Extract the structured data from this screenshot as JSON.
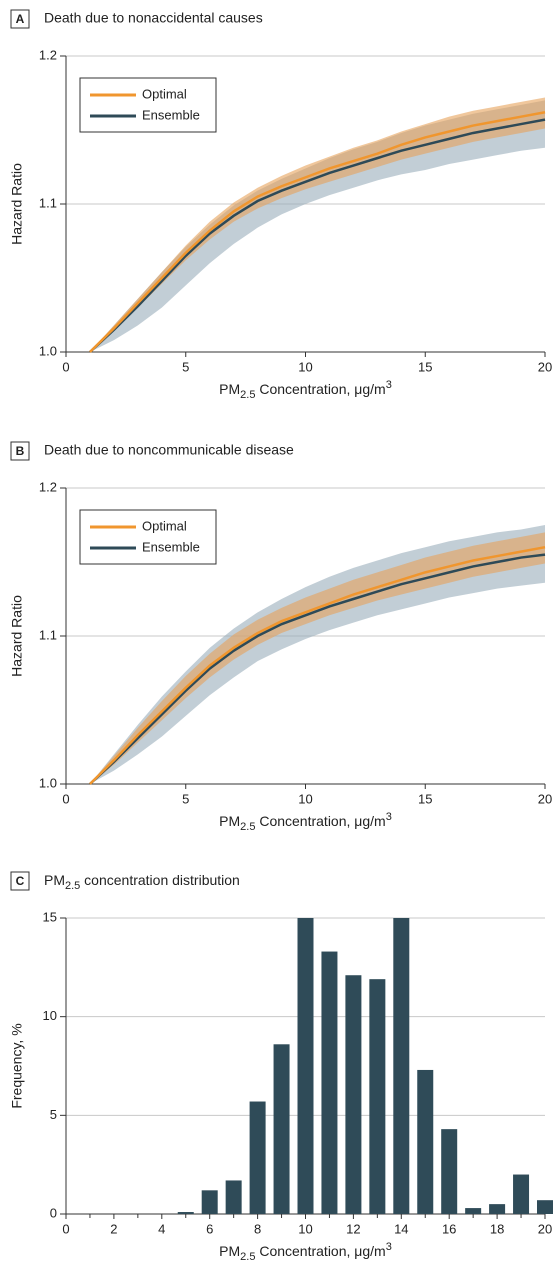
{
  "chart_data": [
    {
      "type": "line",
      "panel_label": "A",
      "title": "Death due to nonaccidental causes",
      "x_label": {
        "pre": "PM",
        "sub": "2.5",
        "post": " Concentration, μg/m",
        "sup": "3"
      },
      "y_label": "Hazard Ratio",
      "x": [
        1,
        2,
        3,
        4,
        5,
        6,
        7,
        8,
        9,
        10,
        11,
        12,
        13,
        14,
        15,
        16,
        17,
        18,
        19,
        20
      ],
      "series": [
        {
          "name": "Ensemble",
          "color": "#2e4a57",
          "band_color": "#9aaebb",
          "values": [
            1.0,
            1.015,
            1.031,
            1.048,
            1.065,
            1.08,
            1.092,
            1.102,
            1.109,
            1.115,
            1.121,
            1.126,
            1.131,
            1.136,
            1.14,
            1.144,
            1.148,
            1.151,
            1.154,
            1.157
          ],
          "lower": [
            1.0,
            1.008,
            1.018,
            1.03,
            1.045,
            1.06,
            1.073,
            1.084,
            1.093,
            1.1,
            1.106,
            1.111,
            1.116,
            1.12,
            1.123,
            1.127,
            1.13,
            1.133,
            1.136,
            1.138
          ],
          "upper": [
            1.0,
            1.018,
            1.036,
            1.054,
            1.071,
            1.086,
            1.099,
            1.109,
            1.117,
            1.124,
            1.131,
            1.137,
            1.142,
            1.148,
            1.153,
            1.157,
            1.161,
            1.164,
            1.167,
            1.17
          ]
        },
        {
          "name": "Optimal",
          "color": "#f0962e",
          "band_color": "#e6a15a",
          "values": [
            1.0,
            1.016,
            1.033,
            1.05,
            1.067,
            1.082,
            1.095,
            1.105,
            1.112,
            1.118,
            1.124,
            1.129,
            1.134,
            1.14,
            1.145,
            1.149,
            1.153,
            1.156,
            1.159,
            1.162
          ],
          "lower": [
            1.0,
            1.014,
            1.03,
            1.046,
            1.062,
            1.076,
            1.088,
            1.097,
            1.104,
            1.11,
            1.115,
            1.12,
            1.125,
            1.13,
            1.134,
            1.138,
            1.142,
            1.145,
            1.148,
            1.151
          ],
          "upper": [
            1.0,
            1.018,
            1.036,
            1.054,
            1.072,
            1.088,
            1.101,
            1.111,
            1.119,
            1.126,
            1.132,
            1.138,
            1.143,
            1.149,
            1.154,
            1.159,
            1.163,
            1.166,
            1.169,
            1.172
          ]
        }
      ],
      "legend_order": [
        1,
        0
      ],
      "legend": "upper left",
      "xlim": [
        0,
        20
      ],
      "xticks": [
        0,
        5,
        10,
        15,
        20
      ],
      "ylim": [
        1.0,
        1.2
      ],
      "yticks": [
        {
          "value": 1.0,
          "label": "1.0"
        },
        1.1,
        1.2
      ],
      "grid": true
    },
    {
      "type": "line",
      "panel_label": "B",
      "title": "Death due to noncommunicable disease",
      "x_label": {
        "pre": "PM",
        "sub": "2.5",
        "post": " Concentration, μg/m",
        "sup": "3"
      },
      "y_label": "Hazard Ratio",
      "x": [
        1,
        2,
        3,
        4,
        5,
        6,
        7,
        8,
        9,
        10,
        11,
        12,
        13,
        14,
        15,
        16,
        17,
        18,
        19,
        20
      ],
      "series": [
        {
          "name": "Ensemble",
          "color": "#2e4a57",
          "band_color": "#9aaebb",
          "values": [
            1.0,
            1.015,
            1.031,
            1.047,
            1.063,
            1.078,
            1.09,
            1.1,
            1.108,
            1.114,
            1.12,
            1.125,
            1.13,
            1.135,
            1.139,
            1.143,
            1.147,
            1.15,
            1.153,
            1.155
          ],
          "lower": [
            1.0,
            1.009,
            1.02,
            1.032,
            1.046,
            1.06,
            1.072,
            1.083,
            1.091,
            1.098,
            1.104,
            1.109,
            1.114,
            1.118,
            1.122,
            1.126,
            1.129,
            1.132,
            1.134,
            1.136
          ],
          "upper": [
            1.0,
            1.02,
            1.04,
            1.059,
            1.076,
            1.092,
            1.105,
            1.116,
            1.125,
            1.133,
            1.14,
            1.146,
            1.151,
            1.156,
            1.16,
            1.164,
            1.167,
            1.17,
            1.172,
            1.175
          ]
        },
        {
          "name": "Optimal",
          "color": "#f0962e",
          "band_color": "#e6a15a",
          "values": [
            1.0,
            1.016,
            1.033,
            1.049,
            1.065,
            1.08,
            1.092,
            1.102,
            1.11,
            1.116,
            1.122,
            1.128,
            1.133,
            1.138,
            1.143,
            1.147,
            1.151,
            1.154,
            1.157,
            1.16
          ],
          "lower": [
            1.0,
            1.013,
            1.028,
            1.043,
            1.058,
            1.072,
            1.084,
            1.094,
            1.102,
            1.108,
            1.114,
            1.119,
            1.124,
            1.128,
            1.132,
            1.136,
            1.14,
            1.143,
            1.146,
            1.149
          ],
          "upper": [
            1.0,
            1.019,
            1.038,
            1.056,
            1.073,
            1.088,
            1.101,
            1.111,
            1.119,
            1.126,
            1.132,
            1.138,
            1.143,
            1.148,
            1.153,
            1.157,
            1.161,
            1.164,
            1.167,
            1.17
          ]
        }
      ],
      "legend_order": [
        1,
        0
      ],
      "legend": "upper left",
      "xlim": [
        0,
        20
      ],
      "xticks": [
        0,
        5,
        10,
        15,
        20
      ],
      "ylim": [
        1.0,
        1.2
      ],
      "yticks": [
        {
          "value": 1.0,
          "label": "1.0"
        },
        1.1,
        1.2
      ],
      "grid": true
    },
    {
      "type": "bar",
      "panel_label": "C",
      "title": {
        "pre": "PM",
        "sub": "2.5",
        "post": " concentration distribution"
      },
      "x_label": {
        "pre": "PM",
        "sub": "2.5",
        "post": " Concentration, μg/m",
        "sup": "3"
      },
      "y_label": "Frequency, %",
      "x": [
        5,
        6,
        7,
        8,
        9,
        10,
        11,
        12,
        13,
        14,
        15,
        16,
        17,
        18,
        19,
        20
      ],
      "values": [
        0.1,
        1.2,
        1.7,
        5.7,
        8.6,
        15.0,
        13.3,
        12.1,
        11.9,
        15.0,
        7.3,
        4.3,
        0.3,
        0.5,
        2.0,
        0.7
      ],
      "color": "#2f4b58",
      "xlim": [
        0,
        20
      ],
      "xticks": [
        0,
        2,
        4,
        6,
        8,
        10,
        12,
        14,
        16,
        18,
        20
      ],
      "xminorticks": [
        1,
        3,
        5,
        7,
        9,
        11,
        13,
        15,
        17,
        19
      ],
      "ylim": [
        0,
        15
      ],
      "yticks": [
        0,
        5,
        10,
        15
      ],
      "grid": true
    }
  ]
}
